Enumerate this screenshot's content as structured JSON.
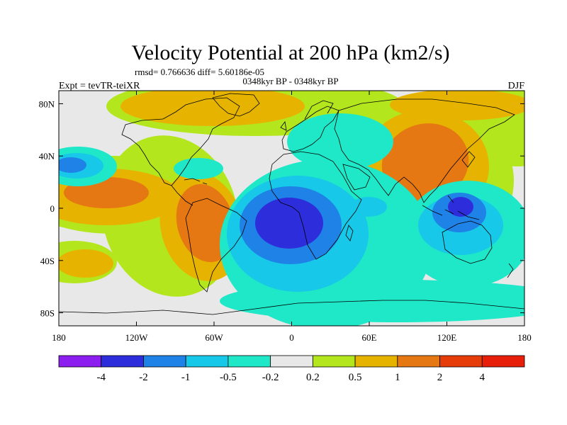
{
  "figure": {
    "title": "Velocity Potential at 200 hPa (km2/s)",
    "stats": "rmsd= 0.766636 diff= 5.60186e-05",
    "period": "0348kyr BP - 0348kyr BP",
    "experiment": "Expt = tevTR-teiXR",
    "season": "DJF"
  },
  "map": {
    "projection": "cylindrical equidistant",
    "lon_range": [
      -180,
      180
    ],
    "lat_range": [
      -90,
      90
    ],
    "lon_ticks": [
      {
        "value": -180,
        "label": "180"
      },
      {
        "value": -120,
        "label": "120W"
      },
      {
        "value": -60,
        "label": "60W"
      },
      {
        "value": 0,
        "label": "0"
      },
      {
        "value": 60,
        "label": "60E"
      },
      {
        "value": 120,
        "label": "120E"
      },
      {
        "value": 180,
        "label": "180"
      }
    ],
    "lat_ticks": [
      {
        "value": 80,
        "label": "80N"
      },
      {
        "value": 40,
        "label": "40N"
      },
      {
        "value": 0,
        "label": "0"
      },
      {
        "value": -40,
        "label": "40S"
      },
      {
        "value": -80,
        "label": "80S"
      }
    ],
    "field_features": [
      {
        "name": "equatorial Atlantic minimum",
        "approx_center_lonlat": [
          -5,
          -10
        ],
        "approx_value": -3
      },
      {
        "name": "maritime continent minimum",
        "approx_center_lonlat": [
          135,
          0
        ],
        "approx_value": -3
      },
      {
        "name": "Asia maximum",
        "approx_center_lonlat": [
          100,
          30
        ],
        "approx_value": 1.5
      },
      {
        "name": "South America maximum",
        "approx_center_lonlat": [
          -65,
          -15
        ],
        "approx_value": 1.5
      },
      {
        "name": "north Pacific maximum",
        "approx_center_lonlat": [
          -135,
          10
        ],
        "approx_value": 1.5
      }
    ]
  },
  "colorbar": {
    "levels": [
      "-4",
      "-2",
      "-1",
      "-0.5",
      "-0.2",
      "0.2",
      "0.5",
      "1",
      "2",
      "4"
    ],
    "colors": [
      "#8c1ef0",
      "#2d2ddc",
      "#1f82e6",
      "#18c8e8",
      "#1fe8c8",
      "#e8e8e8",
      "#b4e61e",
      "#e6b400",
      "#e67814",
      "#e63c0a",
      "#e61e0a"
    ]
  }
}
